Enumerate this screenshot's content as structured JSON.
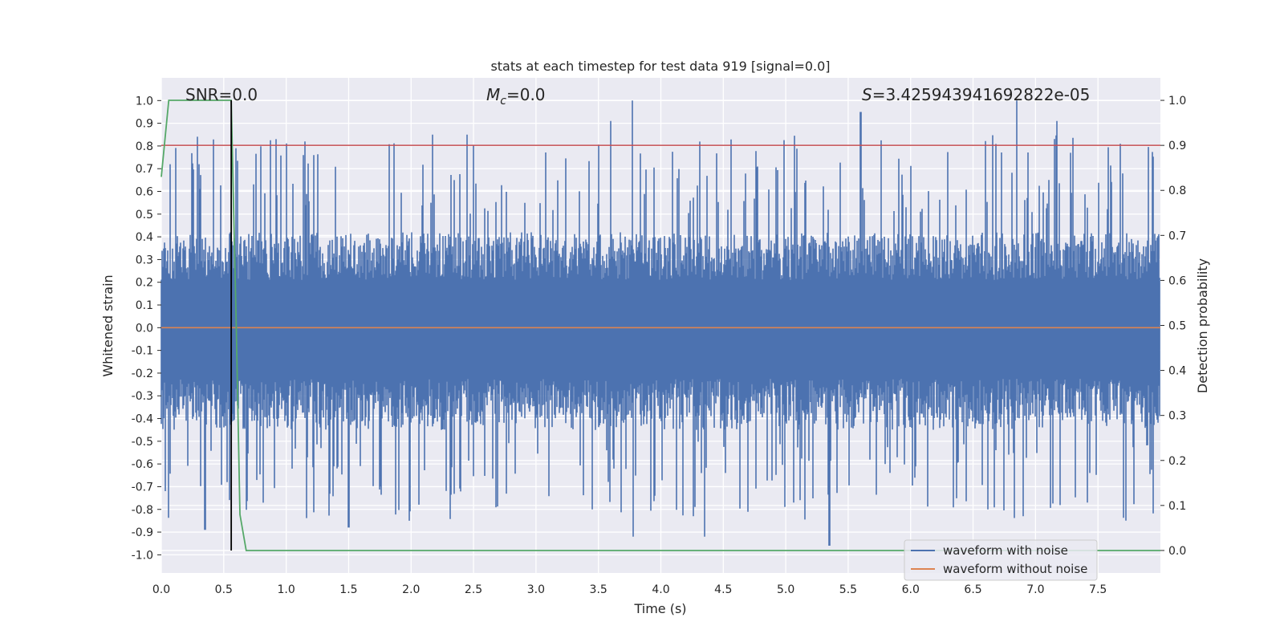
{
  "chart_data": {
    "type": "line",
    "title": "stats at each timestep for test data 919 [signal=0.0]",
    "xlabel": "Time (s)",
    "ylabel_left": "Whitened strain",
    "ylabel_right": "Detection probability",
    "xlim": [
      0.0,
      8.0
    ],
    "ylim_left": [
      -1.08,
      1.1
    ],
    "ylim_right": [
      -0.05,
      1.05
    ],
    "x_ticks": [
      "0.0",
      "0.5",
      "1.0",
      "1.5",
      "2.0",
      "2.5",
      "3.0",
      "3.5",
      "4.0",
      "4.5",
      "5.0",
      "5.5",
      "6.0",
      "6.5",
      "7.0",
      "7.5"
    ],
    "y_ticks_left": [
      "1.0",
      "0.9",
      "0.8",
      "0.7",
      "0.6",
      "0.5",
      "0.4",
      "0.3",
      "0.2",
      "0.1",
      "0.0",
      "-0.1",
      "-0.2",
      "-0.3",
      "-0.4",
      "-0.5",
      "-0.6",
      "-0.7",
      "-0.8",
      "-0.9",
      "-1.0"
    ],
    "y_ticks_right": [
      "1.0",
      "0.9",
      "0.8",
      "0.7",
      "0.6",
      "0.5",
      "0.4",
      "0.3",
      "0.2",
      "0.1",
      "0.0"
    ],
    "annotations": {
      "snr": "SNR=0.0",
      "mc_symbol": "M",
      "mc_sub": "c",
      "mc_value": "=0.0",
      "s_symbol": "S",
      "s_value": "=3.425943941692822e-05"
    },
    "threshold": 0.9,
    "marker_time": 0.56,
    "detection_probability": {
      "x": [
        0.0,
        0.06,
        0.1,
        0.2,
        0.3,
        0.4,
        0.5,
        0.56,
        0.6,
        0.63,
        0.68,
        8.0
      ],
      "y": [
        0.83,
        1.0,
        1.0,
        1.0,
        1.0,
        1.0,
        1.0,
        1.0,
        0.5,
        0.08,
        0.0,
        0.0
      ]
    },
    "noise_envelope": {
      "typical_max": 0.42,
      "typical_min": -0.45,
      "peaks": [
        {
          "t": 0.07,
          "v": 0.72
        },
        {
          "t": 0.3,
          "v": 0.72
        },
        {
          "t": 0.35,
          "v": -0.89
        },
        {
          "t": 0.92,
          "v": 0.83
        },
        {
          "t": 1.15,
          "v": 0.82
        },
        {
          "t": 1.5,
          "v": -0.88
        },
        {
          "t": 2.17,
          "v": 0.85
        },
        {
          "t": 2.45,
          "v": 0.85
        },
        {
          "t": 3.6,
          "v": 0.91
        },
        {
          "t": 3.77,
          "v": 1.0
        },
        {
          "t": 3.78,
          "v": -0.92
        },
        {
          "t": 4.35,
          "v": -0.92
        },
        {
          "t": 5.35,
          "v": -0.96
        },
        {
          "t": 5.6,
          "v": 0.95
        },
        {
          "t": 6.85,
          "v": 1.0
        },
        {
          "t": 7.17,
          "v": 0.91
        }
      ]
    },
    "series": [
      {
        "name": "waveform with noise",
        "color": "#4c72b0"
      },
      {
        "name": "waveform without noise",
        "color": "#dd8452"
      }
    ],
    "colors": {
      "background": "#eaeaf2",
      "grid": "#ffffff",
      "threshold": "#c44e52",
      "probability": "#55a868",
      "marker": "#000000"
    },
    "legend_position": "lower-right"
  }
}
